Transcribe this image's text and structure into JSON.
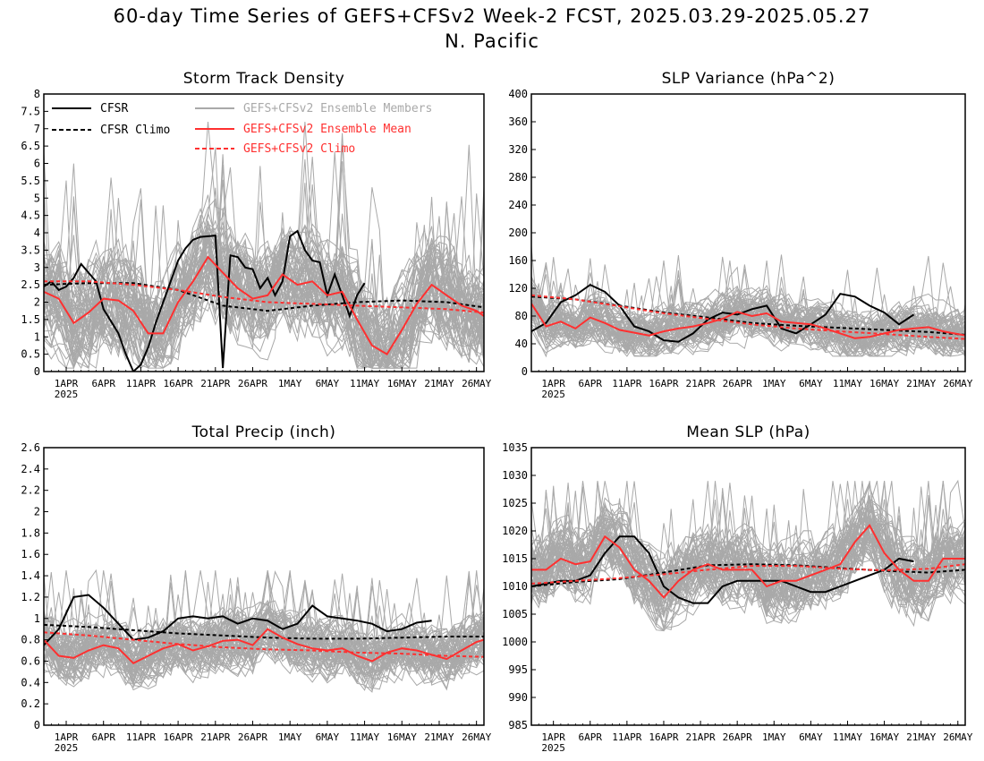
{
  "header": {
    "title_line1": "60-day Time Series of GEFS+CFSv2 Week-2 FCST, 2025.03.29-2025.05.27",
    "title_line2": "N. Pacific"
  },
  "colors": {
    "cfsr": "#000000",
    "ensemble_members": "#a9a9a9",
    "ensemble_mean": "#ff3030",
    "frame": "#000000"
  },
  "x_axis": {
    "tick_labels": [
      "1APR",
      "6APR",
      "11APR",
      "16APR",
      "21APR",
      "26APR",
      "1MAY",
      "6MAY",
      "11MAY",
      "16MAY",
      "21MAY",
      "26MAY"
    ],
    "year_label": "2025",
    "first_tick_day": 3,
    "tick_step_days": 5,
    "day_range": [
      0,
      59
    ]
  },
  "legend": {
    "cfsr": "CFSR",
    "cfsr_climo": "CFSR Climo",
    "members": "GEFS+CFSv2 Ensemble Members",
    "mean": "GEFS+CFSv2 Ensemble Mean",
    "climo": "GEFS+CFSv2 Climo",
    "placement": "top, inside Storm Track Density panel"
  },
  "chart_data": [
    {
      "type": "line",
      "title": "Storm Track Density",
      "ylim": [
        0,
        8
      ],
      "yticks": [
        0,
        0.5,
        1,
        1.5,
        2,
        2.5,
        3,
        3.5,
        4,
        4.5,
        5,
        5.5,
        6,
        6.5,
        7,
        7.5,
        8
      ],
      "ensemble_band": {
        "lower": 0.1,
        "upper": 4.9,
        "peak_upper": 7.2
      },
      "series": [
        {
          "name": "CFSR",
          "style": "solid",
          "color": "#000000",
          "x": [
            0,
            1,
            2,
            3,
            4,
            5,
            6,
            7,
            8,
            9,
            10,
            11,
            12,
            13,
            14,
            15,
            16,
            17,
            18,
            19,
            20,
            21,
            22,
            23,
            24,
            25,
            26,
            27,
            28,
            29,
            30,
            31,
            32,
            33,
            34,
            35,
            36,
            37,
            38,
            39,
            40,
            41,
            42,
            43
          ],
          "y": [
            2.45,
            2.6,
            2.35,
            2.45,
            2.7,
            3.1,
            2.85,
            2.6,
            1.8,
            1.45,
            1.1,
            0.5,
            0.0,
            0.2,
            0.7,
            1.4,
            2.0,
            2.6,
            3.2,
            3.55,
            3.8,
            3.88,
            3.9,
            3.92,
            0.1,
            3.35,
            3.3,
            3.0,
            2.95,
            2.4,
            2.7,
            2.2,
            2.6,
            3.9,
            4.05,
            3.5,
            3.2,
            3.15,
            2.2,
            2.8,
            2.2,
            1.6,
            2.2,
            2.55
          ]
        },
        {
          "name": "CFSR Climo",
          "style": "dashed",
          "color": "#000000",
          "x": [
            0,
            6,
            12,
            18,
            24,
            30,
            36,
            42,
            48,
            54,
            59
          ],
          "y": [
            2.5,
            2.55,
            2.55,
            2.35,
            1.9,
            1.75,
            1.9,
            2.0,
            2.05,
            2.0,
            1.85
          ]
        },
        {
          "name": "GEFS+CFSv2 Ensemble Mean",
          "style": "solid",
          "color": "#ff3030",
          "x": [
            0,
            2,
            4,
            6,
            8,
            10,
            12,
            14,
            16,
            18,
            20,
            22,
            24,
            26,
            28,
            30,
            32,
            34,
            36,
            38,
            40,
            42,
            44,
            46,
            48,
            50,
            52,
            54,
            56,
            58,
            59
          ],
          "y": [
            2.3,
            2.1,
            1.4,
            1.7,
            2.1,
            2.05,
            1.75,
            1.1,
            1.1,
            2.0,
            2.6,
            3.3,
            2.85,
            2.4,
            2.1,
            2.2,
            2.8,
            2.5,
            2.6,
            2.2,
            2.3,
            1.5,
            0.75,
            0.5,
            1.2,
            1.95,
            2.5,
            2.2,
            1.9,
            1.75,
            1.6
          ]
        },
        {
          "name": "GEFS+CFSv2 Climo",
          "style": "dashed",
          "color": "#ff3030",
          "x": [
            0,
            6,
            12,
            18,
            24,
            30,
            36,
            42,
            48,
            54,
            59
          ],
          "y": [
            2.6,
            2.6,
            2.5,
            2.35,
            2.15,
            2.0,
            1.95,
            1.9,
            1.85,
            1.8,
            1.7
          ]
        }
      ]
    },
    {
      "type": "line",
      "title": "SLP Variance (hPa^2)",
      "ylim": [
        0,
        400
      ],
      "yticks": [
        0,
        40,
        80,
        120,
        160,
        200,
        240,
        280,
        320,
        360,
        400
      ],
      "ensemble_band": {
        "lower": 22,
        "upper": 130,
        "peak_upper": 235
      },
      "series": [
        {
          "name": "CFSR",
          "style": "solid",
          "color": "#000000",
          "x": [
            0,
            2,
            4,
            6,
            8,
            10,
            12,
            14,
            16,
            18,
            20,
            22,
            24,
            26,
            28,
            30,
            32,
            34,
            36,
            38,
            40,
            42,
            44,
            46,
            48,
            50,
            52
          ],
          "y": [
            58,
            70,
            100,
            110,
            125,
            115,
            95,
            65,
            58,
            45,
            43,
            55,
            75,
            85,
            82,
            90,
            95,
            62,
            55,
            68,
            82,
            112,
            108,
            95,
            85,
            68,
            82
          ]
        },
        {
          "name": "CFSR Climo",
          "style": "dashed",
          "color": "#000000",
          "x": [
            0,
            6,
            12,
            18,
            24,
            30,
            36,
            42,
            48,
            54,
            59
          ],
          "y": [
            108,
            104,
            95,
            85,
            78,
            70,
            66,
            63,
            60,
            57,
            53
          ]
        },
        {
          "name": "GEFS+CFSv2 Ensemble Mean",
          "style": "solid",
          "color": "#ff3030",
          "x": [
            0,
            2,
            4,
            6,
            8,
            10,
            12,
            14,
            16,
            18,
            20,
            22,
            24,
            26,
            28,
            30,
            32,
            34,
            36,
            38,
            40,
            42,
            44,
            46,
            48,
            50,
            52,
            54,
            56,
            58,
            59
          ],
          "y": [
            98,
            65,
            72,
            62,
            78,
            70,
            60,
            56,
            52,
            58,
            62,
            65,
            70,
            76,
            86,
            80,
            84,
            72,
            70,
            68,
            62,
            55,
            48,
            50,
            55,
            60,
            62,
            64,
            58,
            54,
            52
          ]
        },
        {
          "name": "GEFS+CFSv2 Climo",
          "style": "dashed",
          "color": "#ff3030",
          "x": [
            0,
            6,
            12,
            18,
            24,
            30,
            36,
            42,
            48,
            54,
            59
          ],
          "y": [
            110,
            104,
            94,
            84,
            76,
            68,
            62,
            58,
            54,
            50,
            47
          ]
        }
      ]
    },
    {
      "type": "line",
      "title": "Total Precip (inch)",
      "ylim": [
        0,
        2.6
      ],
      "yticks": [
        0,
        0.2,
        0.4,
        0.6,
        0.8,
        1,
        1.2,
        1.4,
        1.6,
        1.8,
        2,
        2.2,
        2.4,
        2.6
      ],
      "ensemble_band": {
        "lower": 0.3,
        "upper": 1.15,
        "peak_upper": 1.45
      },
      "series": [
        {
          "name": "CFSR",
          "style": "solid",
          "color": "#000000",
          "x": [
            0,
            2,
            4,
            6,
            8,
            10,
            12,
            14,
            16,
            18,
            20,
            22,
            24,
            26,
            28,
            30,
            32,
            34,
            36,
            38,
            40,
            42,
            44,
            46,
            48,
            50,
            52
          ],
          "y": [
            0.75,
            0.9,
            1.2,
            1.22,
            1.1,
            0.95,
            0.8,
            0.82,
            0.88,
            1.0,
            1.02,
            1.0,
            1.02,
            0.95,
            1.0,
            0.98,
            0.9,
            0.95,
            1.12,
            1.02,
            1.0,
            0.98,
            0.95,
            0.88,
            0.9,
            0.96,
            0.98
          ]
        },
        {
          "name": "CFSR Climo",
          "style": "dashed",
          "color": "#000000",
          "x": [
            0,
            6,
            12,
            18,
            24,
            30,
            36,
            42,
            48,
            54,
            59
          ],
          "y": [
            0.94,
            0.92,
            0.89,
            0.86,
            0.84,
            0.82,
            0.81,
            0.81,
            0.82,
            0.83,
            0.83
          ]
        },
        {
          "name": "GEFS+CFSv2 Ensemble Mean",
          "style": "solid",
          "color": "#ff3030",
          "x": [
            0,
            2,
            4,
            6,
            8,
            10,
            12,
            14,
            16,
            18,
            20,
            22,
            24,
            26,
            28,
            30,
            32,
            34,
            36,
            38,
            40,
            42,
            44,
            46,
            48,
            50,
            52,
            54,
            56,
            58,
            59
          ],
          "y": [
            0.8,
            0.65,
            0.63,
            0.7,
            0.75,
            0.72,
            0.58,
            0.65,
            0.72,
            0.76,
            0.7,
            0.74,
            0.79,
            0.8,
            0.75,
            0.9,
            0.82,
            0.76,
            0.72,
            0.7,
            0.72,
            0.65,
            0.6,
            0.68,
            0.72,
            0.7,
            0.66,
            0.62,
            0.7,
            0.78,
            0.8
          ]
        },
        {
          "name": "GEFS+CFSv2 Climo",
          "style": "dashed",
          "color": "#ff3030",
          "x": [
            0,
            6,
            12,
            18,
            24,
            30,
            36,
            42,
            48,
            54,
            59
          ],
          "y": [
            0.87,
            0.84,
            0.8,
            0.76,
            0.73,
            0.71,
            0.7,
            0.68,
            0.67,
            0.65,
            0.64
          ]
        }
      ]
    },
    {
      "type": "line",
      "title": "Mean SLP (hPa)",
      "ylim": [
        985,
        1035
      ],
      "yticks": [
        985,
        990,
        995,
        1000,
        1005,
        1010,
        1015,
        1020,
        1025,
        1030,
        1035
      ],
      "ensemble_band": {
        "lower": 1002,
        "upper": 1023,
        "peak_upper": 1029
      },
      "series": [
        {
          "name": "CFSR",
          "style": "solid",
          "color": "#000000",
          "x": [
            0,
            2,
            4,
            6,
            8,
            10,
            12,
            14,
            16,
            18,
            20,
            22,
            24,
            26,
            28,
            30,
            32,
            34,
            36,
            38,
            40,
            42,
            44,
            46,
            48,
            50,
            52
          ],
          "y": [
            1010,
            1010.5,
            1011,
            1011,
            1012,
            1016,
            1019,
            1019,
            1016,
            1010,
            1008,
            1007,
            1007,
            1010,
            1011,
            1011,
            1011,
            1011,
            1010,
            1009,
            1009,
            1010,
            1011,
            1012,
            1013,
            1015,
            1014.5
          ]
        },
        {
          "name": "CFSR Climo",
          "style": "dashed",
          "color": "#000000",
          "x": [
            0,
            6,
            12,
            18,
            24,
            30,
            36,
            42,
            48,
            54,
            59
          ],
          "y": [
            1010,
            1010.8,
            1011.3,
            1012.5,
            1013.8,
            1014,
            1013.8,
            1013.3,
            1012.8,
            1012.5,
            1013
          ]
        },
        {
          "name": "GEFS+CFSv2 Ensemble Mean",
          "style": "solid",
          "color": "#ff3030",
          "x": [
            0,
            2,
            4,
            6,
            8,
            10,
            12,
            14,
            16,
            18,
            20,
            22,
            24,
            26,
            28,
            30,
            32,
            34,
            36,
            38,
            40,
            42,
            44,
            46,
            48,
            50,
            52,
            54,
            56,
            58,
            59
          ],
          "y": [
            1013,
            1013,
            1015,
            1014,
            1014.5,
            1019,
            1017,
            1013,
            1011,
            1008,
            1011,
            1013,
            1014,
            1013,
            1013,
            1013,
            1010,
            1011,
            1011,
            1012,
            1013,
            1014,
            1018,
            1021,
            1016,
            1013,
            1011,
            1011,
            1015,
            1015,
            1015
          ]
        },
        {
          "name": "GEFS+CFSv2 Climo",
          "style": "dashed",
          "color": "#ff3030",
          "x": [
            0,
            6,
            12,
            18,
            24,
            30,
            36,
            42,
            48,
            54,
            59
          ],
          "y": [
            1010.5,
            1011,
            1011.5,
            1012.2,
            1013,
            1013.7,
            1013.7,
            1013.2,
            1012.9,
            1013.2,
            1014
          ]
        }
      ]
    }
  ]
}
